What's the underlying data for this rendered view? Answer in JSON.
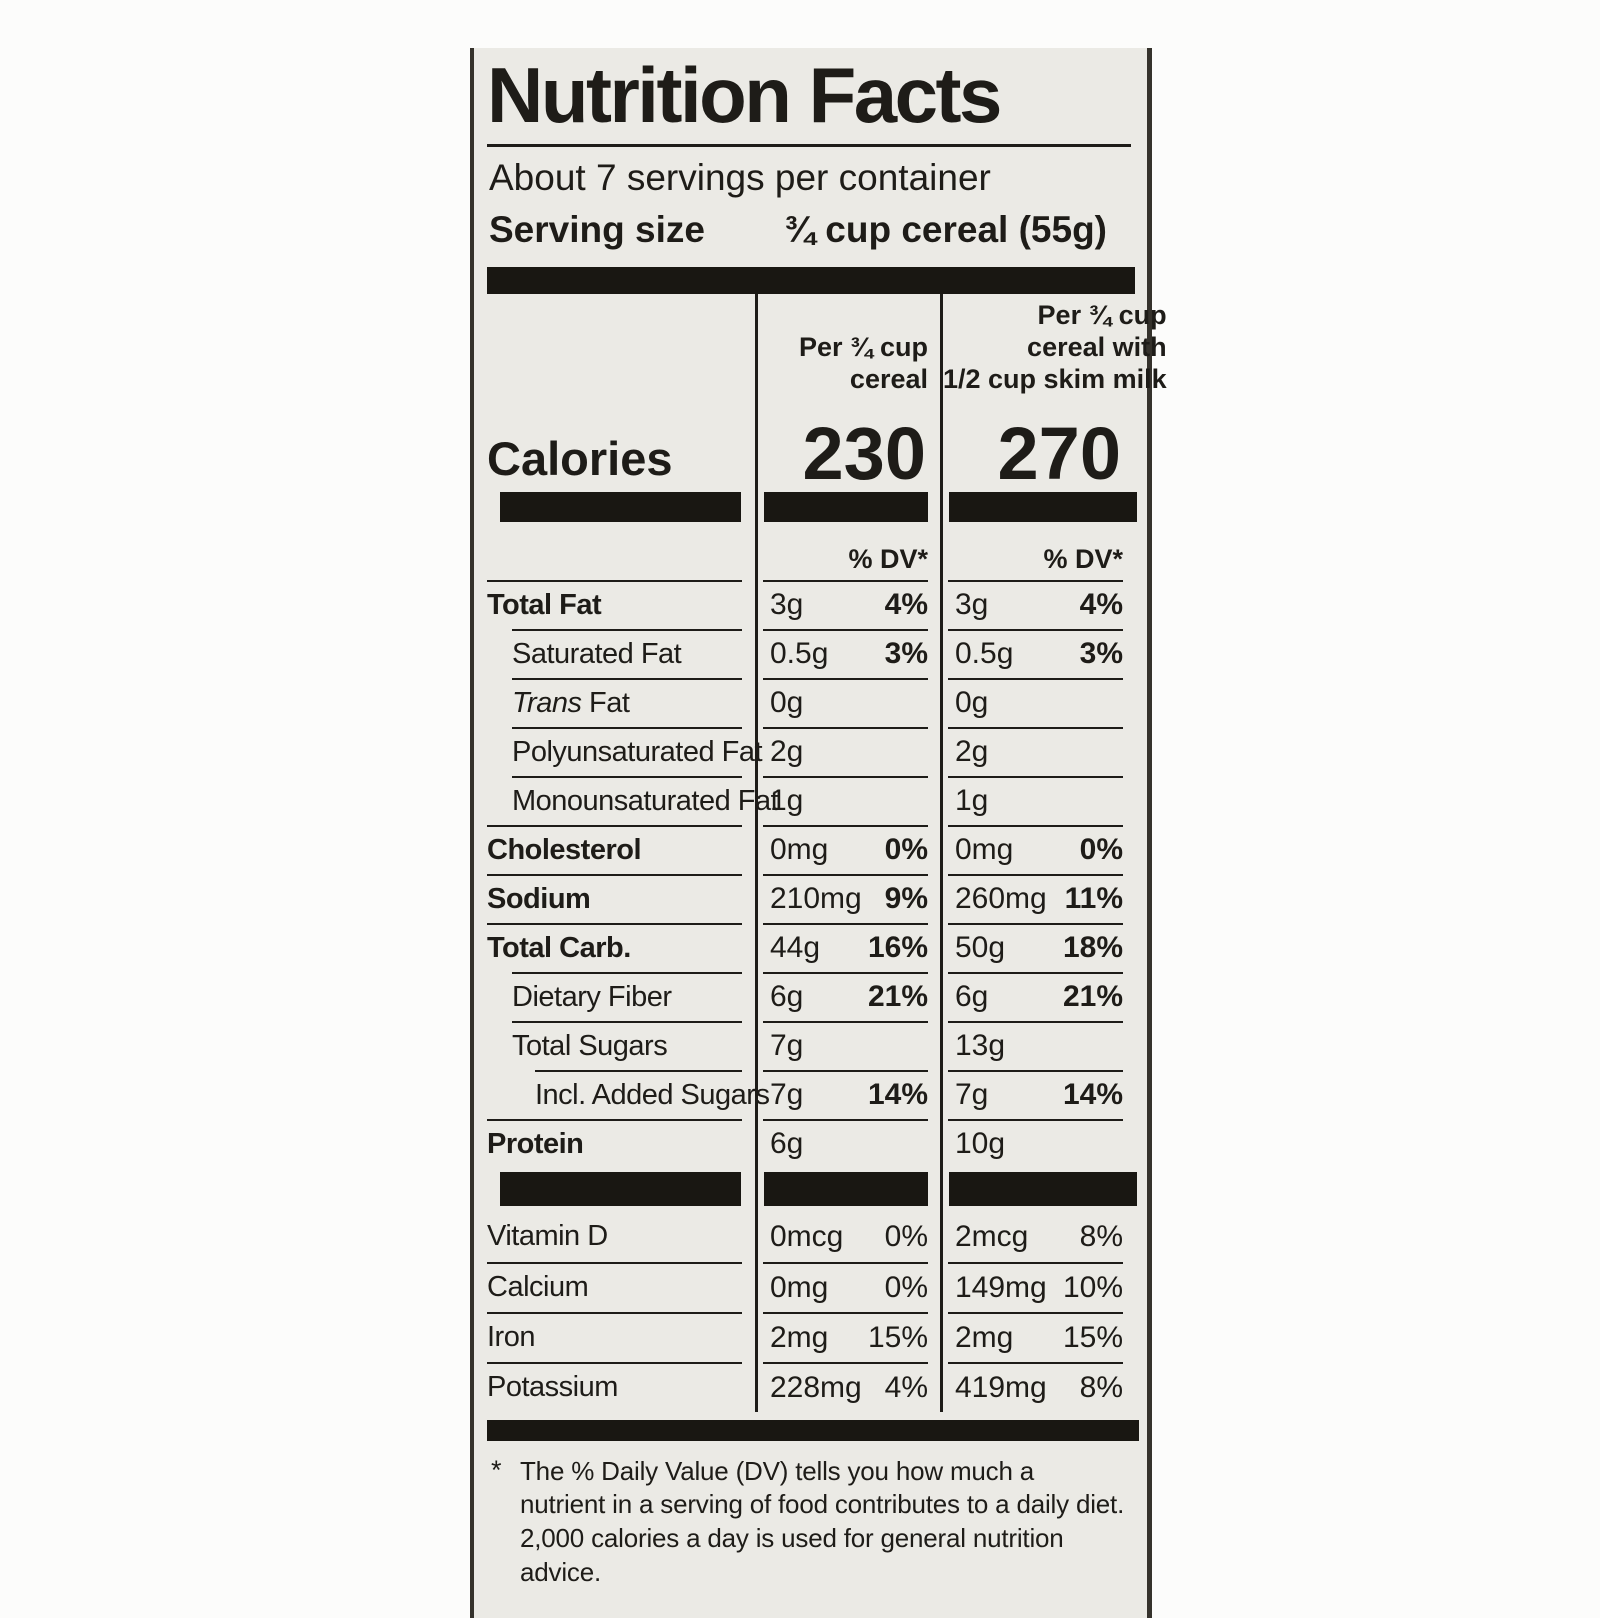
{
  "label": {
    "title": "Nutrition Facts",
    "servings_per_container": "About 7 servings per container",
    "serving_size_label": "Serving size",
    "serving_size_value": "¾ cup cereal (55g)",
    "calories_label": "Calories",
    "dv_header": "% DV*",
    "columns": [
      {
        "header_lines": [
          "Per ¾ cup",
          "cereal"
        ],
        "calories": "230"
      },
      {
        "header_lines": [
          "Per ¾ cup",
          "cereal with",
          "1/2 cup skim milk"
        ],
        "calories": "270"
      }
    ],
    "rows": [
      {
        "name": "Total Fat",
        "bold": true,
        "indent": 0,
        "dv_bold": true,
        "cereal": {
          "amount": "3g",
          "dv": "4%"
        },
        "with_milk": {
          "amount": "3g",
          "dv": "4%"
        }
      },
      {
        "name": "Saturated Fat",
        "bold": false,
        "indent": 1,
        "dv_bold": true,
        "cereal": {
          "amount": "0.5g",
          "dv": "3%"
        },
        "with_milk": {
          "amount": "0.5g",
          "dv": "3%"
        }
      },
      {
        "name": "Trans Fat",
        "italic": "Trans",
        "bold": false,
        "indent": 1,
        "dv_bold": false,
        "cereal": {
          "amount": "0g",
          "dv": ""
        },
        "with_milk": {
          "amount": "0g",
          "dv": ""
        }
      },
      {
        "name": "Polyunsaturated Fat",
        "bold": false,
        "indent": 1,
        "dv_bold": false,
        "cereal": {
          "amount": "2g",
          "dv": ""
        },
        "with_milk": {
          "amount": "2g",
          "dv": ""
        }
      },
      {
        "name": "Monounsaturated Fat",
        "bold": false,
        "indent": 1,
        "dv_bold": false,
        "cereal": {
          "amount": "1g",
          "dv": ""
        },
        "with_milk": {
          "amount": "1g",
          "dv": ""
        }
      },
      {
        "name": "Cholesterol",
        "bold": true,
        "indent": 0,
        "dv_bold": true,
        "cereal": {
          "amount": "0mg",
          "dv": "0%"
        },
        "with_milk": {
          "amount": "0mg",
          "dv": "0%"
        }
      },
      {
        "name": "Sodium",
        "bold": true,
        "indent": 0,
        "dv_bold": true,
        "cereal": {
          "amount": "210mg",
          "dv": "9%"
        },
        "with_milk": {
          "amount": "260mg",
          "dv": "11%"
        }
      },
      {
        "name": "Total Carb.",
        "bold": true,
        "indent": 0,
        "dv_bold": true,
        "cereal": {
          "amount": "44g",
          "dv": "16%"
        },
        "with_milk": {
          "amount": "50g",
          "dv": "18%"
        }
      },
      {
        "name": "Dietary Fiber",
        "bold": false,
        "indent": 1,
        "dv_bold": true,
        "cereal": {
          "amount": "6g",
          "dv": "21%"
        },
        "with_milk": {
          "amount": "6g",
          "dv": "21%"
        }
      },
      {
        "name": "Total Sugars",
        "bold": false,
        "indent": 1,
        "dv_bold": false,
        "cereal": {
          "amount": "7g",
          "dv": ""
        },
        "with_milk": {
          "amount": "13g",
          "dv": ""
        }
      },
      {
        "name": "Incl. Added Sugars",
        "bold": false,
        "indent": 2,
        "dv_bold": true,
        "cereal": {
          "amount": "7g",
          "dv": "14%"
        },
        "with_milk": {
          "amount": "7g",
          "dv": "14%"
        }
      },
      {
        "name": "Protein",
        "bold": true,
        "indent": 0,
        "dv_bold": false,
        "cereal": {
          "amount": "6g",
          "dv": ""
        },
        "with_milk": {
          "amount": "10g",
          "dv": ""
        }
      }
    ],
    "vitamin_rows": [
      {
        "name": "Vitamin D",
        "bold": false,
        "indent": 0,
        "dv_bold": false,
        "cereal": {
          "amount": "0mcg",
          "dv": "0%"
        },
        "with_milk": {
          "amount": "2mcg",
          "dv": "8%"
        }
      },
      {
        "name": "Calcium",
        "bold": false,
        "indent": 0,
        "dv_bold": false,
        "cereal": {
          "amount": "0mg",
          "dv": "0%"
        },
        "with_milk": {
          "amount": "149mg",
          "dv": "10%"
        }
      },
      {
        "name": "Iron",
        "bold": false,
        "indent": 0,
        "dv_bold": false,
        "cereal": {
          "amount": "2mg",
          "dv": "15%"
        },
        "with_milk": {
          "amount": "2mg",
          "dv": "15%"
        }
      },
      {
        "name": "Potassium",
        "bold": false,
        "indent": 0,
        "dv_bold": false,
        "cereal": {
          "amount": "228mg",
          "dv": "4%"
        },
        "with_milk": {
          "amount": "419mg",
          "dv": "8%"
        }
      }
    ],
    "footnote_marker": "*",
    "footnote": "The % Daily Value (DV) tells you how much a nutrient in a serving of food contributes to a daily diet. 2,000 calories a day is used for general nutrition advice.",
    "colors": {
      "ink": "#1e1c18",
      "bar": "#191712",
      "label_background": "#ebeae5",
      "page_background": "#fcfcfb"
    }
  }
}
